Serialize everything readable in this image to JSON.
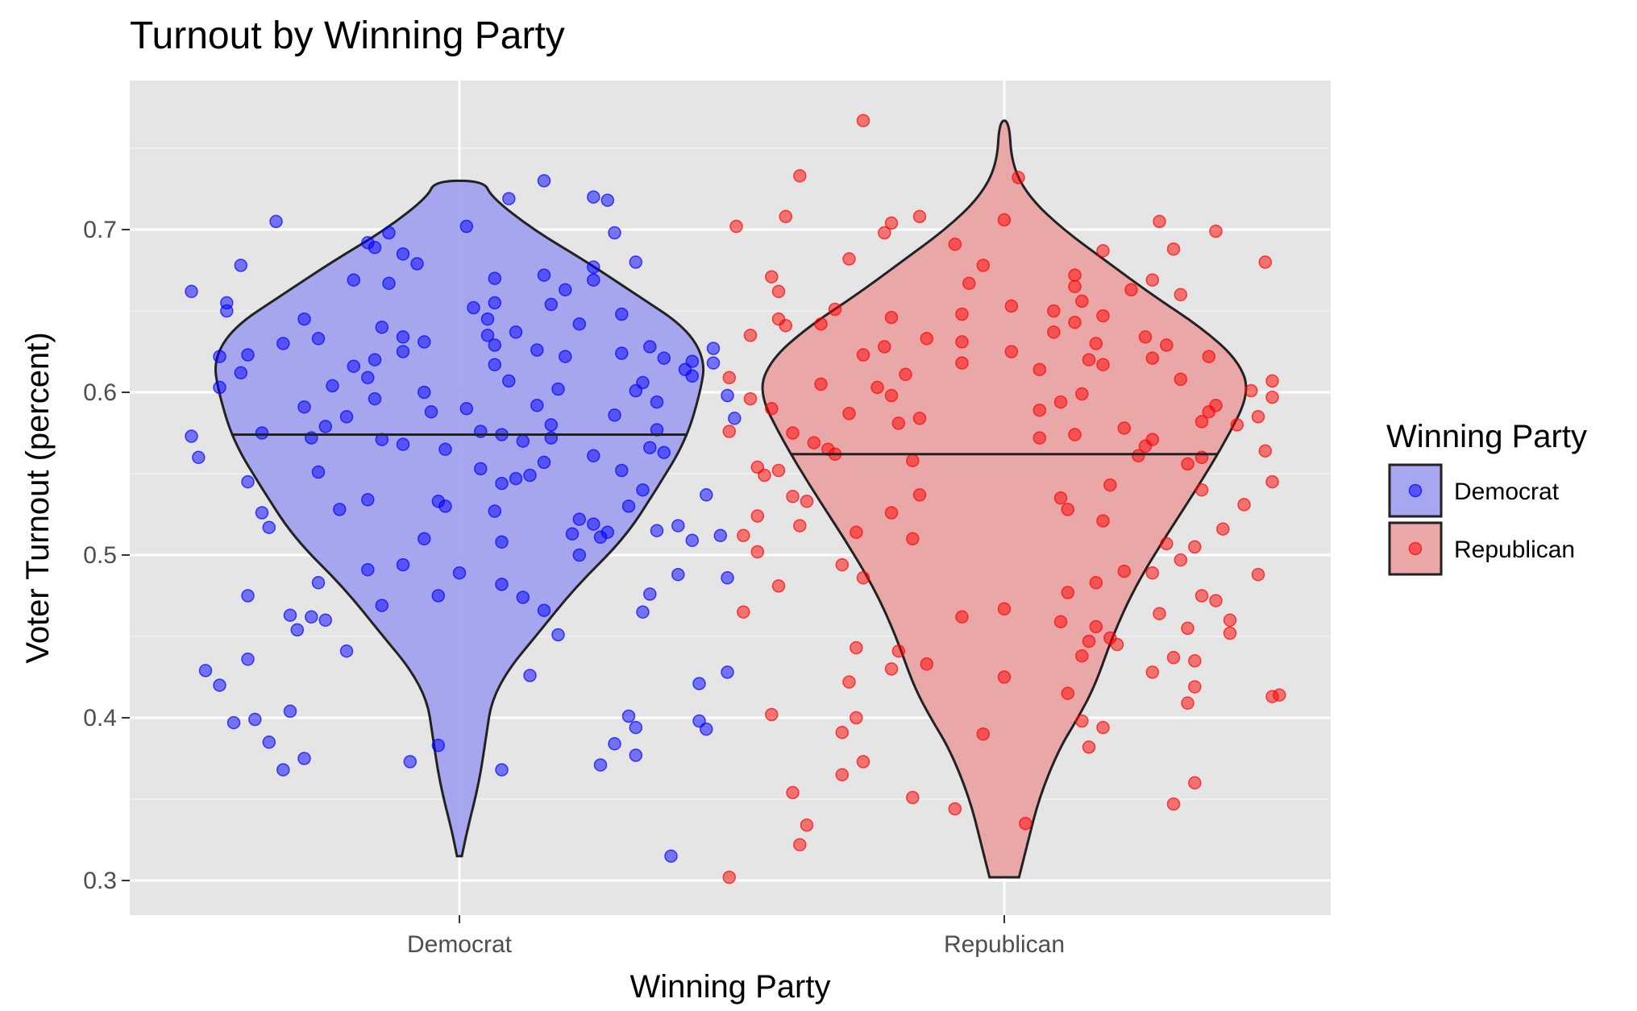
{
  "chart_data": {
    "type": "violin",
    "title": "Turnout by Winning Party",
    "xlabel": "Winning Party",
    "ylabel": "Voter Turnout (percent)",
    "categories": [
      "Democrat",
      "Republican"
    ],
    "ylim": [
      0.28,
      0.79
    ],
    "yticks": [
      0.3,
      0.4,
      0.5,
      0.6,
      0.7
    ],
    "ytick_labels": [
      "0.3",
      "0.4",
      "0.5",
      "0.6",
      "0.7"
    ],
    "grid": true,
    "background": "#e5e5e5",
    "legend": {
      "title": "Winning Party",
      "position": "right",
      "entries": [
        "Democrat",
        "Republican"
      ]
    },
    "series": [
      {
        "name": "Democrat",
        "point_color": "#0000ff",
        "fill_color": "#9f9ff0",
        "median": 0.574,
        "min": 0.315,
        "max": 0.73,
        "violin_profile": [
          [
            0.315,
            0.01
          ],
          [
            0.33,
            0.03
          ],
          [
            0.36,
            0.08
          ],
          [
            0.39,
            0.11
          ],
          [
            0.41,
            0.13
          ],
          [
            0.43,
            0.2
          ],
          [
            0.45,
            0.31
          ],
          [
            0.48,
            0.47
          ],
          [
            0.51,
            0.67
          ],
          [
            0.54,
            0.8
          ],
          [
            0.57,
            0.92
          ],
          [
            0.6,
            0.98
          ],
          [
            0.62,
            1.0
          ],
          [
            0.64,
            0.92
          ],
          [
            0.66,
            0.72
          ],
          [
            0.68,
            0.52
          ],
          [
            0.7,
            0.3
          ],
          [
            0.72,
            0.13
          ],
          [
            0.73,
            0.1
          ]
        ],
        "values": [
          0.73,
          0.705,
          0.698,
          0.702,
          0.692,
          0.685,
          0.68,
          0.679,
          0.678,
          0.677,
          0.672,
          0.67,
          0.669,
          0.669,
          0.667,
          0.662,
          0.655,
          0.654,
          0.652,
          0.65,
          0.648,
          0.645,
          0.645,
          0.642,
          0.64,
          0.637,
          0.635,
          0.633,
          0.631,
          0.63,
          0.629,
          0.628,
          0.627,
          0.626,
          0.625,
          0.624,
          0.623,
          0.622,
          0.622,
          0.621,
          0.62,
          0.619,
          0.618,
          0.617,
          0.616,
          0.614,
          0.612,
          0.61,
          0.609,
          0.607,
          0.606,
          0.604,
          0.602,
          0.601,
          0.6,
          0.598,
          0.596,
          0.594,
          0.592,
          0.591,
          0.59,
          0.588,
          0.586,
          0.585,
          0.584,
          0.58,
          0.579,
          0.577,
          0.576,
          0.575,
          0.574,
          0.573,
          0.572,
          0.572,
          0.571,
          0.57,
          0.568,
          0.566,
          0.565,
          0.563,
          0.561,
          0.56,
          0.557,
          0.553,
          0.552,
          0.551,
          0.549,
          0.545,
          0.544,
          0.54,
          0.537,
          0.534,
          0.533,
          0.53,
          0.528,
          0.527,
          0.526,
          0.522,
          0.519,
          0.518,
          0.517,
          0.515,
          0.514,
          0.513,
          0.512,
          0.511,
          0.51,
          0.509,
          0.508,
          0.5,
          0.494,
          0.491,
          0.489,
          0.488,
          0.486,
          0.483,
          0.482,
          0.476,
          0.475,
          0.474,
          0.469,
          0.466,
          0.465,
          0.463,
          0.462,
          0.46,
          0.454,
          0.451,
          0.441,
          0.436,
          0.429,
          0.428,
          0.426,
          0.421,
          0.42,
          0.404,
          0.401,
          0.399,
          0.398,
          0.397,
          0.394,
          0.393,
          0.385,
          0.384,
          0.383,
          0.377,
          0.375,
          0.373,
          0.371,
          0.368,
          0.368,
          0.315,
          0.72,
          0.719,
          0.718,
          0.698,
          0.689,
          0.663,
          0.655,
          0.634,
          0.603,
          0.547,
          0.53,
          0.475
        ],
        "jitter": [
          0.12,
          -0.26,
          -0.1,
          0.01,
          -0.13,
          -0.08,
          0.25,
          -0.06,
          -0.31,
          0.19,
          0.12,
          0.05,
          -0.15,
          0.19,
          -0.1,
          -0.38,
          -0.33,
          0.13,
          0.02,
          -0.33,
          0.23,
          -0.22,
          0.04,
          0.17,
          -0.11,
          0.08,
          0.04,
          -0.2,
          -0.05,
          -0.25,
          0.05,
          0.27,
          0.36,
          0.11,
          -0.08,
          0.23,
          -0.3,
          0.15,
          -0.34,
          0.29,
          -0.12,
          0.33,
          0.36,
          0.05,
          -0.15,
          0.32,
          -0.31,
          0.33,
          -0.13,
          0.07,
          0.26,
          -0.18,
          0.14,
          0.25,
          -0.05,
          0.38,
          -0.12,
          0.28,
          0.11,
          -0.22,
          0.01,
          -0.04,
          0.22,
          -0.16,
          0.39,
          0.13,
          -0.19,
          0.28,
          0.03,
          -0.28,
          0.06,
          -0.38,
          -0.21,
          0.13,
          -0.11,
          0.09,
          -0.08,
          0.27,
          -0.02,
          0.29,
          0.19,
          -0.37,
          0.12,
          0.03,
          0.23,
          -0.2,
          0.1,
          -0.3,
          0.06,
          0.26,
          0.35,
          -0.13,
          -0.03,
          0.24,
          -0.17,
          0.05,
          -0.28,
          0.17,
          0.19,
          0.31,
          -0.27,
          0.28,
          0.21,
          0.16,
          0.37,
          0.2,
          -0.05,
          0.33,
          0.06,
          0.17,
          -0.08,
          -0.13,
          0.0,
          0.31,
          0.38,
          -0.2,
          0.06,
          0.27,
          -0.3,
          0.09,
          -0.11,
          0.12,
          0.26,
          -0.24,
          -0.21,
          -0.19,
          -0.23,
          0.14,
          -0.16,
          -0.3,
          -0.36,
          0.38,
          0.1,
          0.34,
          -0.34,
          -0.24,
          0.24,
          -0.29,
          0.34,
          -0.32,
          0.25,
          0.35,
          -0.27,
          0.22,
          -0.03,
          0.25,
          -0.22,
          -0.07,
          0.2,
          -0.25,
          0.06,
          0.3,
          0.19,
          0.07,
          0.21,
          0.22,
          -0.12,
          0.15,
          0.05,
          -0.08,
          -0.34,
          0.08,
          -0.02,
          -0.03
        ]
      },
      {
        "name": "Republican",
        "point_color": "#ff0000",
        "fill_color": "#eaa0a0",
        "median": 0.562,
        "min": 0.302,
        "max": 0.767,
        "violin_profile": [
          [
            0.302,
            0.06
          ],
          [
            0.32,
            0.09
          ],
          [
            0.35,
            0.14
          ],
          [
            0.38,
            0.22
          ],
          [
            0.4,
            0.3
          ],
          [
            0.42,
            0.37
          ],
          [
            0.45,
            0.44
          ],
          [
            0.48,
            0.53
          ],
          [
            0.51,
            0.65
          ],
          [
            0.54,
            0.78
          ],
          [
            0.57,
            0.9
          ],
          [
            0.6,
            1.0
          ],
          [
            0.62,
            0.95
          ],
          [
            0.64,
            0.8
          ],
          [
            0.66,
            0.6
          ],
          [
            0.68,
            0.42
          ],
          [
            0.7,
            0.24
          ],
          [
            0.72,
            0.1
          ],
          [
            0.74,
            0.03
          ],
          [
            0.767,
            0.02
          ]
        ],
        "values": [
          0.767,
          0.733,
          0.732,
          0.708,
          0.708,
          0.706,
          0.705,
          0.704,
          0.702,
          0.699,
          0.698,
          0.691,
          0.688,
          0.687,
          0.682,
          0.68,
          0.678,
          0.672,
          0.671,
          0.669,
          0.667,
          0.665,
          0.663,
          0.662,
          0.66,
          0.656,
          0.653,
          0.651,
          0.65,
          0.648,
          0.647,
          0.646,
          0.645,
          0.643,
          0.642,
          0.641,
          0.637,
          0.635,
          0.634,
          0.633,
          0.631,
          0.63,
          0.629,
          0.628,
          0.625,
          0.623,
          0.622,
          0.621,
          0.62,
          0.618,
          0.617,
          0.614,
          0.611,
          0.609,
          0.608,
          0.607,
          0.605,
          0.603,
          0.601,
          0.599,
          0.598,
          0.597,
          0.596,
          0.594,
          0.592,
          0.59,
          0.589,
          0.588,
          0.587,
          0.585,
          0.584,
          0.582,
          0.581,
          0.58,
          0.578,
          0.576,
          0.575,
          0.574,
          0.572,
          0.571,
          0.569,
          0.567,
          0.565,
          0.564,
          0.562,
          0.561,
          0.56,
          0.558,
          0.556,
          0.554,
          0.552,
          0.549,
          0.545,
          0.543,
          0.54,
          0.537,
          0.536,
          0.535,
          0.533,
          0.531,
          0.528,
          0.526,
          0.524,
          0.521,
          0.518,
          0.516,
          0.514,
          0.512,
          0.51,
          0.507,
          0.505,
          0.502,
          0.497,
          0.494,
          0.49,
          0.489,
          0.488,
          0.486,
          0.483,
          0.481,
          0.477,
          0.475,
          0.472,
          0.467,
          0.465,
          0.464,
          0.462,
          0.46,
          0.459,
          0.456,
          0.455,
          0.452,
          0.449,
          0.447,
          0.445,
          0.443,
          0.441,
          0.438,
          0.437,
          0.435,
          0.433,
          0.43,
          0.428,
          0.425,
          0.422,
          0.419,
          0.415,
          0.414,
          0.413,
          0.409,
          0.402,
          0.4,
          0.398,
          0.394,
          0.391,
          0.39,
          0.382,
          0.373,
          0.365,
          0.36,
          0.354,
          0.351,
          0.347,
          0.344,
          0.335,
          0.334,
          0.322,
          0.302
        ],
        "jitter": [
          -0.2,
          -0.29,
          0.02,
          -0.31,
          -0.12,
          0.0,
          0.22,
          -0.16,
          -0.38,
          0.3,
          -0.17,
          -0.07,
          0.24,
          0.14,
          -0.22,
          0.37,
          -0.03,
          0.1,
          -0.33,
          0.21,
          -0.05,
          0.1,
          0.18,
          -0.32,
          0.25,
          0.11,
          0.01,
          -0.24,
          0.07,
          -0.06,
          0.14,
          -0.16,
          -0.32,
          0.1,
          -0.26,
          -0.31,
          0.07,
          -0.36,
          0.2,
          -0.11,
          -0.06,
          0.13,
          0.23,
          -0.17,
          0.01,
          -0.2,
          0.29,
          0.21,
          0.12,
          -0.06,
          0.14,
          0.05,
          -0.14,
          -0.39,
          0.25,
          0.38,
          -0.26,
          -0.18,
          0.35,
          0.11,
          -0.16,
          0.38,
          -0.36,
          0.08,
          0.3,
          -0.33,
          0.05,
          0.29,
          -0.22,
          0.36,
          -0.12,
          0.28,
          -0.15,
          0.33,
          0.17,
          -0.39,
          -0.3,
          0.1,
          0.05,
          0.21,
          -0.27,
          0.2,
          -0.25,
          0.37,
          -0.24,
          0.19,
          0.28,
          -0.13,
          0.26,
          -0.35,
          -0.32,
          -0.34,
          0.38,
          0.15,
          0.28,
          -0.12,
          -0.3,
          0.08,
          -0.28,
          0.34,
          0.09,
          -0.16,
          -0.35,
          0.14,
          -0.29,
          0.31,
          -0.21,
          -0.37,
          -0.13,
          0.23,
          0.27,
          -0.35,
          0.25,
          -0.23,
          0.17,
          0.21,
          0.36,
          -0.2,
          0.13,
          -0.32,
          0.09,
          0.28,
          0.3,
          0.0,
          -0.37,
          0.22,
          -0.06,
          0.32,
          0.08,
          0.13,
          0.26,
          0.32,
          0.15,
          0.12,
          0.16,
          -0.21,
          -0.15,
          0.11,
          0.24,
          0.27,
          -0.11,
          -0.16,
          0.21,
          0.0,
          -0.22,
          0.27,
          0.09,
          0.39,
          0.38,
          0.26,
          -0.33,
          -0.21,
          0.11,
          0.14,
          -0.23,
          -0.03,
          0.12,
          -0.2,
          -0.23,
          0.27,
          -0.3,
          -0.13,
          0.24,
          -0.07,
          0.03,
          -0.28,
          -0.29,
          -0.39,
          0.31,
          -0.0
        ]
      }
    ]
  }
}
